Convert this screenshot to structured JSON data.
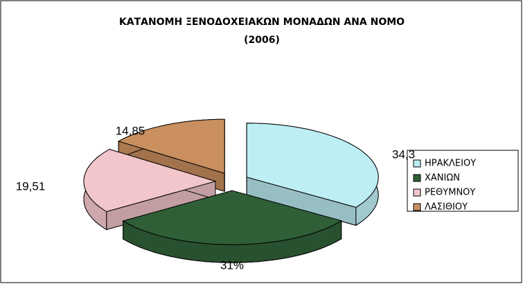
{
  "chart_data": {
    "type": "pie",
    "title": "ΚΑΤΑΝΟΜΗ ΞΕΝΟΔΟΧΕΙΑΚΩΝ ΜΟΝΑΔΩΝ ΑΝΑ ΝΟΜΟ",
    "subtitle": "(2006)",
    "categories": [
      "ΗΡΑΚΛΕΙΟΥ",
      "ΧΑΝΙΩΝ",
      "ΡΕΘΥΜΝΟΥ",
      "ΛΑΣΙΘΙΟΥ"
    ],
    "values": [
      34.3,
      31,
      19.51,
      14.85
    ],
    "value_labels": [
      "34,3",
      "31%",
      "19,51",
      "14,85"
    ],
    "colors": [
      "#bdeef4",
      "#2f5f37",
      "#f2c6ca",
      "#c98f5f"
    ],
    "legend": "right"
  }
}
